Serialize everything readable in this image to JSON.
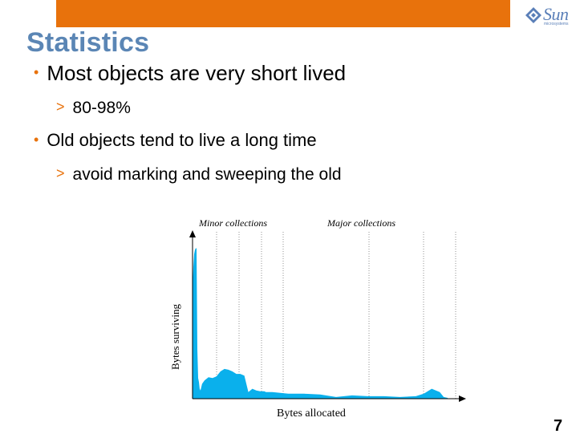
{
  "slide": {
    "title": "Statistics",
    "page_number": "7",
    "logo": {
      "word": "Sun",
      "subtitle": "microsystems"
    },
    "bullets": [
      {
        "text": "Most objects are very short lived",
        "sub": "80-98%"
      },
      {
        "text": "Old objects tend to live a long time",
        "sub": "avoid marking and sweeping the old"
      }
    ],
    "bullet_mark": "•",
    "sub_mark": ">"
  },
  "chart_data": {
    "type": "area",
    "xlabel": "Bytes allocated",
    "ylabel": "Bytes surviving",
    "annotations": [
      "Minor collections",
      "Major collections"
    ],
    "fill_color": "#0ab0ec",
    "grid": false,
    "x": [
      0,
      1,
      2,
      3,
      4,
      5,
      6,
      7,
      8,
      9,
      10,
      12,
      15,
      20,
      25,
      30,
      35,
      40,
      45,
      50,
      55,
      60,
      65,
      70,
      75,
      80,
      85,
      90,
      92,
      95,
      100,
      110,
      120,
      140,
      160,
      180,
      200,
      220,
      240,
      260,
      280,
      290,
      300,
      310,
      315,
      320
    ],
    "values": [
      135,
      160,
      175,
      180,
      182,
      182,
      60,
      25,
      20,
      12,
      10,
      18,
      22,
      26,
      25,
      27,
      33,
      36,
      35,
      33,
      30,
      30,
      28,
      8,
      12,
      10,
      9,
      9,
      8,
      8,
      8,
      7,
      6,
      6,
      5,
      2,
      4,
      3,
      3,
      2,
      3,
      6,
      12,
      8,
      2,
      1
    ],
    "xlim": [
      0,
      340
    ],
    "ylim": [
      0,
      200
    ]
  }
}
